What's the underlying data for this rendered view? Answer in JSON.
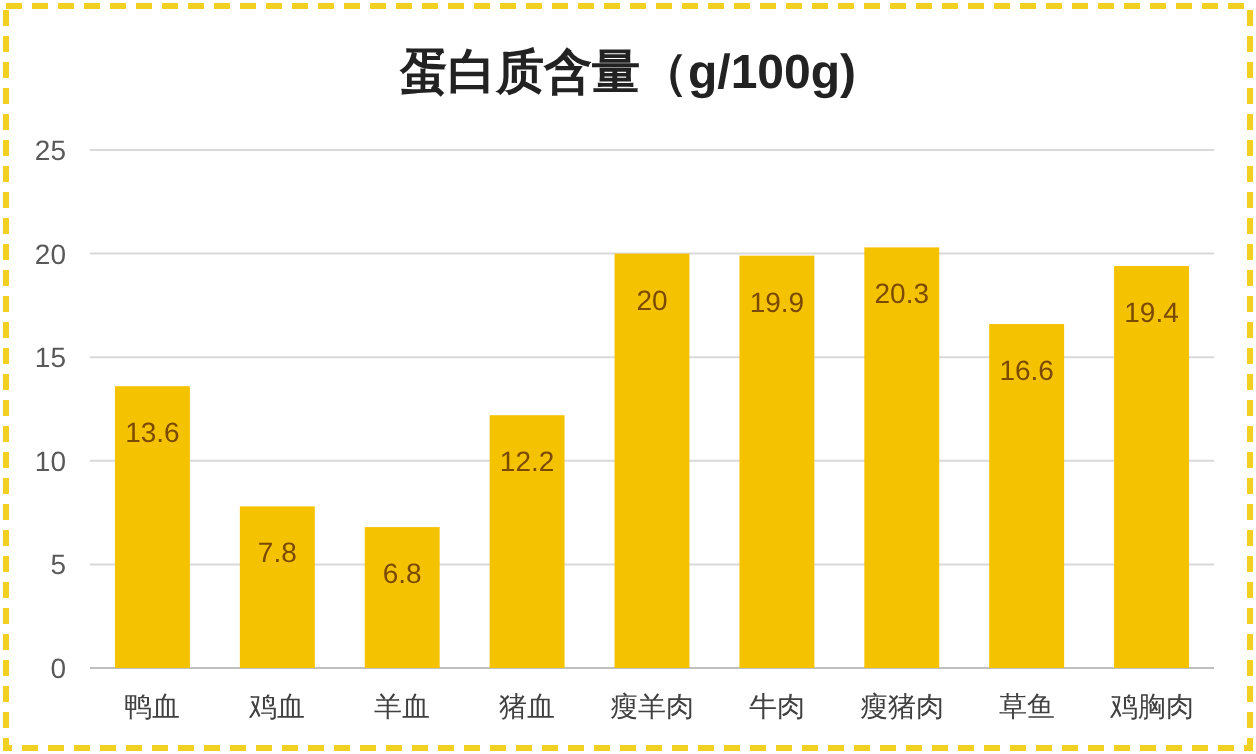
{
  "chart_data": {
    "type": "bar",
    "title": "蛋白质含量（g/100g)",
    "categories": [
      "鸭血",
      "鸡血",
      "羊血",
      "猪血",
      "瘦羊肉",
      "牛肉",
      "瘦猪肉",
      "草鱼",
      "鸡胸肉"
    ],
    "values": [
      13.6,
      7.8,
      6.8,
      12.2,
      20,
      19.9,
      20.3,
      16.6,
      19.4
    ],
    "color": "#f5c200",
    "ylim": [
      0,
      25
    ],
    "yticks": [
      0,
      5,
      10,
      15,
      20,
      25
    ],
    "grid": "y",
    "data_labels": true
  }
}
